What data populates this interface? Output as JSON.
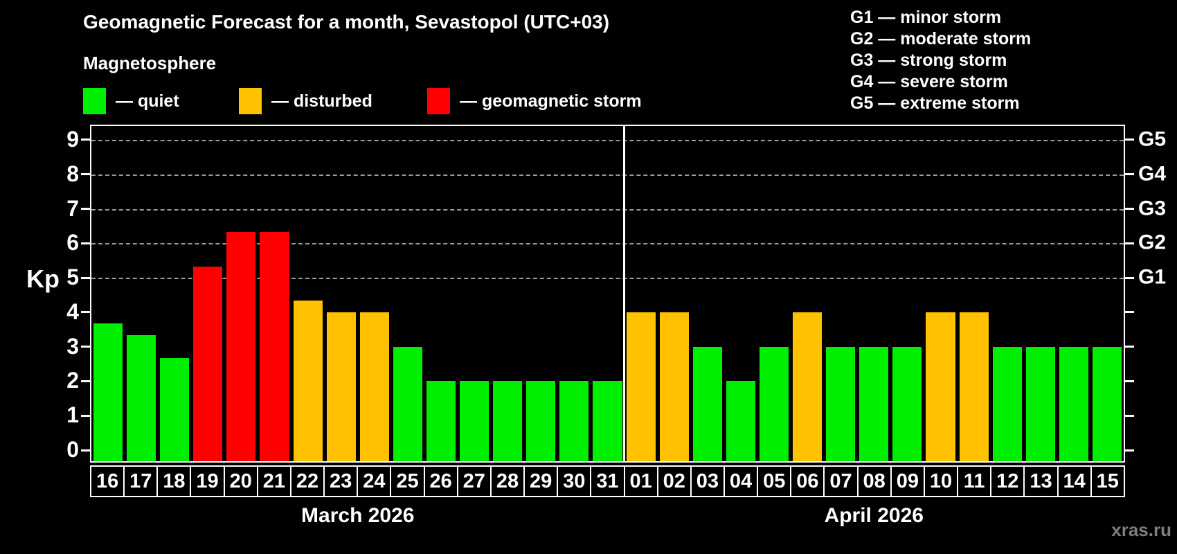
{
  "title": "Geomagnetic Forecast for a month, Sevastopol (UTC+03)",
  "subtitle": "Magnetosphere",
  "watermark": "xras.ru",
  "colors": {
    "quiet": "#00ee00",
    "disturbed": "#ffc100",
    "storm": "#ff0000",
    "axis": "#ffffff",
    "grid": "#9b9b9b",
    "background": "#000000",
    "watermark": "#7e7e7e"
  },
  "legend": {
    "items": [
      {
        "status": "quiet",
        "label": "— quiet"
      },
      {
        "status": "disturbed",
        "label": "— disturbed"
      },
      {
        "status": "storm",
        "label": "— geomagnetic storm"
      }
    ]
  },
  "g_legend": {
    "lines": [
      "G1 — minor storm",
      "G2 — moderate storm",
      "G3 — strong storm",
      "G4 — severe storm",
      "G5 — extreme storm"
    ]
  },
  "chart_data": {
    "type": "bar",
    "title": "Geomagnetic Forecast for a month, Sevastopol (UTC+03)",
    "ylabel": "Kp",
    "ylim": [
      0,
      9.7
    ],
    "y_ticks": [
      0,
      1,
      2,
      3,
      4,
      5,
      6,
      7,
      8,
      9
    ],
    "gridlines_at": [
      5,
      6,
      7,
      8,
      9
    ],
    "grid": true,
    "legend_position": "top-left",
    "right_axis": [
      {
        "kp": 5,
        "label": "G1"
      },
      {
        "kp": 6,
        "label": "G2"
      },
      {
        "kp": 7,
        "label": "G3"
      },
      {
        "kp": 8,
        "label": "G4"
      },
      {
        "kp": 9,
        "label": "G5"
      }
    ],
    "months": [
      {
        "label": "March 2026",
        "days": 16
      },
      {
        "label": "April 2026",
        "days": 15
      }
    ],
    "categories": [
      "16",
      "17",
      "18",
      "19",
      "20",
      "21",
      "22",
      "23",
      "24",
      "25",
      "26",
      "27",
      "28",
      "29",
      "30",
      "31",
      "01",
      "02",
      "03",
      "04",
      "05",
      "06",
      "07",
      "08",
      "09",
      "10",
      "11",
      "12",
      "13",
      "14",
      "15"
    ],
    "values": [
      3.67,
      3.33,
      2.67,
      5.33,
      6.33,
      6.33,
      4.33,
      4,
      4,
      3,
      2,
      2,
      2,
      2,
      2,
      2,
      4,
      4,
      3,
      2,
      3,
      4,
      3,
      3,
      3,
      4,
      4,
      3,
      3,
      3,
      3
    ],
    "statuses": [
      "quiet",
      "quiet",
      "quiet",
      "storm",
      "storm",
      "storm",
      "disturbed",
      "disturbed",
      "disturbed",
      "quiet",
      "quiet",
      "quiet",
      "quiet",
      "quiet",
      "quiet",
      "quiet",
      "disturbed",
      "disturbed",
      "quiet",
      "quiet",
      "quiet",
      "disturbed",
      "quiet",
      "quiet",
      "quiet",
      "disturbed",
      "disturbed",
      "quiet",
      "quiet",
      "quiet",
      "quiet"
    ]
  }
}
